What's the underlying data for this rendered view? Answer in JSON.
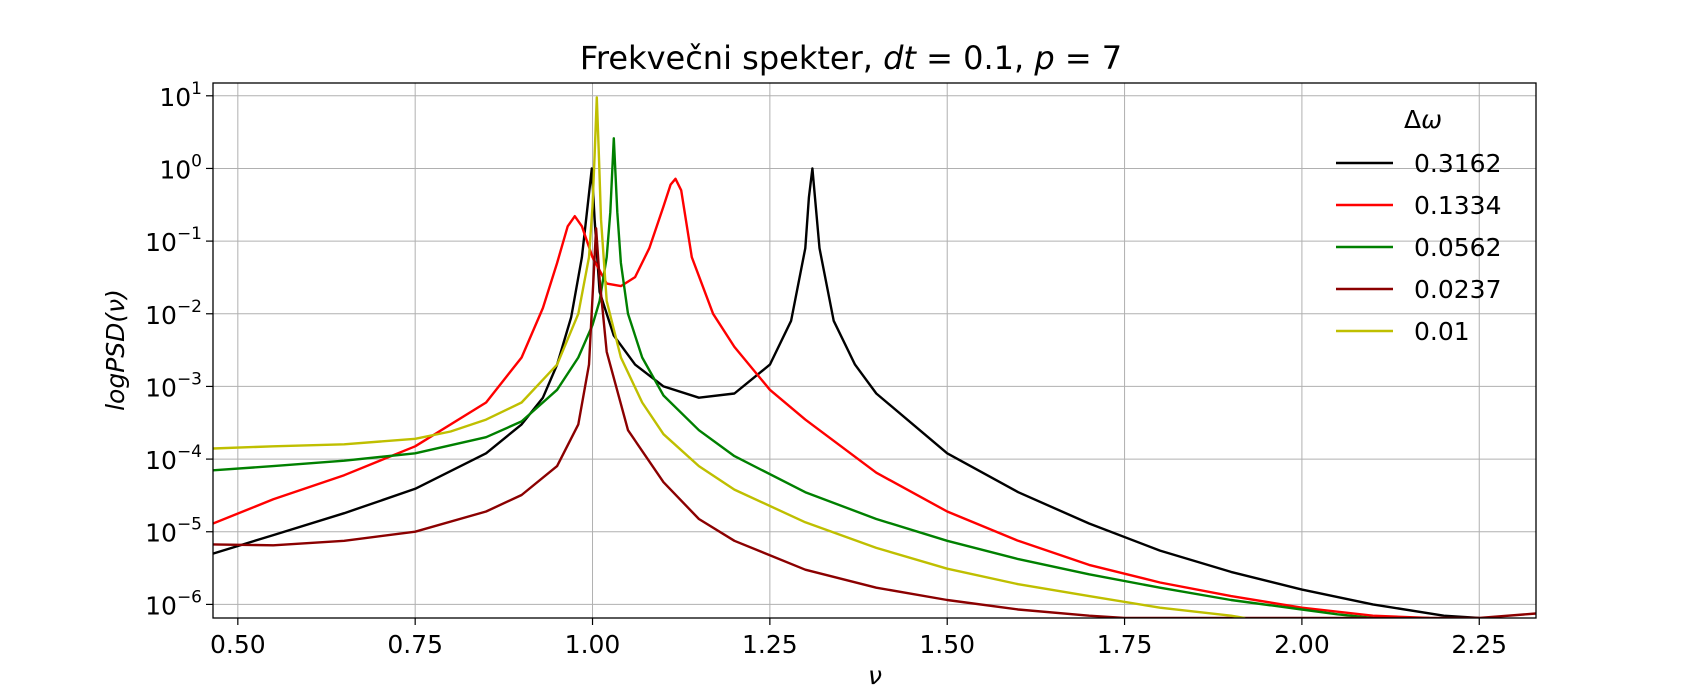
{
  "chart_data": {
    "type": "line",
    "title": "Frekvečni spekter, dt = 0.1, p = 7",
    "xlabel": "ν",
    "ylabel": "logPSD(ν)",
    "yscale": "log",
    "xlim": [
      0.465,
      2.33
    ],
    "ylim": [
      6.5e-07,
      15
    ],
    "xticks": [
      0.5,
      0.75,
      1.0,
      1.25,
      1.5,
      1.75,
      2.0,
      2.25
    ],
    "xtick_labels": [
      "0.50",
      "0.75",
      "1.00",
      "1.25",
      "1.50",
      "1.75",
      "2.00",
      "2.25"
    ],
    "yticks": [
      {
        "value": 1e-06,
        "base": "10",
        "exp": "−6"
      },
      {
        "value": 1e-05,
        "base": "10",
        "exp": "−5"
      },
      {
        "value": 0.0001,
        "base": "10",
        "exp": "−4"
      },
      {
        "value": 0.001,
        "base": "10",
        "exp": "−3"
      },
      {
        "value": 0.01,
        "base": "10",
        "exp": "−2"
      },
      {
        "value": 0.1,
        "base": "10",
        "exp": "−1"
      },
      {
        "value": 1,
        "base": "10",
        "exp": "0"
      },
      {
        "value": 10,
        "base": "10",
        "exp": "1"
      }
    ],
    "grid": true,
    "legend": {
      "title": "Δω",
      "placement": "top-right"
    },
    "series": [
      {
        "name": "0.3162",
        "color": "#000000",
        "x": [
          0.465,
          0.55,
          0.65,
          0.75,
          0.85,
          0.9,
          0.93,
          0.95,
          0.97,
          0.985,
          0.999,
          1.003,
          1.01,
          1.03,
          1.06,
          1.1,
          1.15,
          1.2,
          1.25,
          1.28,
          1.3,
          1.305,
          1.31,
          1.32,
          1.34,
          1.37,
          1.4,
          1.5,
          1.6,
          1.7,
          1.8,
          1.9,
          2.0,
          2.1,
          2.2,
          2.25
        ],
        "y": [
          5e-06,
          9e-06,
          1.8e-05,
          3.9e-05,
          0.00012,
          0.0003,
          0.0007,
          0.002,
          0.009,
          0.06,
          1.0,
          0.2,
          0.02,
          0.005,
          0.002,
          0.001,
          0.0007,
          0.0008,
          0.002,
          0.008,
          0.08,
          0.4,
          1.0,
          0.08,
          0.008,
          0.002,
          0.0008,
          0.00012,
          3.5e-05,
          1.3e-05,
          5.5e-06,
          2.8e-06,
          1.6e-06,
          1e-06,
          7e-07,
          6.5e-07
        ]
      },
      {
        "name": "0.1334",
        "color": "#ff0000",
        "x": [
          0.465,
          0.55,
          0.65,
          0.75,
          0.85,
          0.9,
          0.93,
          0.95,
          0.965,
          0.975,
          0.985,
          1.0,
          1.02,
          1.04,
          1.06,
          1.08,
          1.1,
          1.11,
          1.117,
          1.125,
          1.14,
          1.17,
          1.2,
          1.25,
          1.3,
          1.4,
          1.5,
          1.6,
          1.7,
          1.8,
          1.9,
          2.0,
          2.1,
          2.18
        ],
        "y": [
          1.3e-05,
          2.8e-05,
          6e-05,
          0.00015,
          0.0006,
          0.0025,
          0.012,
          0.05,
          0.16,
          0.22,
          0.16,
          0.06,
          0.026,
          0.024,
          0.032,
          0.08,
          0.3,
          0.6,
          0.72,
          0.5,
          0.06,
          0.01,
          0.0035,
          0.0009,
          0.00035,
          6.5e-05,
          1.9e-05,
          7.5e-06,
          3.5e-06,
          2e-06,
          1.3e-06,
          9e-07,
          7e-07,
          6.5e-07
        ]
      },
      {
        "name": "0.0562",
        "color": "#008000",
        "x": [
          0.465,
          0.55,
          0.65,
          0.75,
          0.85,
          0.9,
          0.95,
          0.98,
          1.0,
          1.01,
          1.02,
          1.025,
          1.03,
          1.035,
          1.04,
          1.05,
          1.07,
          1.1,
          1.15,
          1.2,
          1.3,
          1.4,
          1.5,
          1.6,
          1.7,
          1.8,
          1.9,
          2.0,
          2.05,
          2.1
        ],
        "y": [
          7e-05,
          8e-05,
          9.5e-05,
          0.00012,
          0.0002,
          0.00033,
          0.0009,
          0.0025,
          0.007,
          0.015,
          0.06,
          0.25,
          2.6,
          0.25,
          0.05,
          0.01,
          0.0025,
          0.00075,
          0.00025,
          0.00011,
          3.5e-05,
          1.5e-05,
          7.5e-06,
          4.2e-06,
          2.6e-06,
          1.7e-06,
          1.15e-06,
          8.5e-07,
          7.3e-07,
          6.5e-07
        ]
      },
      {
        "name": "0.0237",
        "color": "#8b0000",
        "x": [
          0.465,
          0.55,
          0.65,
          0.75,
          0.85,
          0.9,
          0.95,
          0.98,
          0.995,
          1.005,
          1.01,
          1.02,
          1.05,
          1.1,
          1.15,
          1.2,
          1.3,
          1.4,
          1.5,
          1.6,
          1.7,
          1.75,
          2.25,
          2.33
        ],
        "y": [
          6.7e-06,
          6.5e-06,
          7.5e-06,
          1e-05,
          1.9e-05,
          3.2e-05,
          8e-05,
          0.0003,
          0.002,
          0.15,
          0.03,
          0.003,
          0.00025,
          4.8e-05,
          1.5e-05,
          7.5e-06,
          3e-06,
          1.7e-06,
          1.15e-06,
          8.5e-07,
          7e-07,
          6.5e-07,
          6.5e-07,
          7.5e-07
        ]
      },
      {
        "name": "0.01",
        "color": "#bfbf00",
        "x": [
          0.465,
          0.55,
          0.65,
          0.75,
          0.8,
          0.85,
          0.9,
          0.95,
          0.98,
          0.995,
          1.0,
          1.003,
          1.006,
          1.009,
          1.012,
          1.02,
          1.04,
          1.07,
          1.1,
          1.15,
          1.2,
          1.3,
          1.4,
          1.5,
          1.6,
          1.7,
          1.8,
          1.9,
          1.92
        ],
        "y": [
          0.00014,
          0.00015,
          0.00016,
          0.00019,
          0.00024,
          0.00035,
          0.0006,
          0.002,
          0.01,
          0.06,
          0.3,
          1.5,
          9.5,
          1.5,
          0.2,
          0.015,
          0.0025,
          0.0006,
          0.00022,
          8e-05,
          3.8e-05,
          1.35e-05,
          6e-06,
          3.1e-06,
          1.9e-06,
          1.3e-06,
          9e-07,
          7e-07,
          6.5e-07
        ]
      }
    ]
  }
}
